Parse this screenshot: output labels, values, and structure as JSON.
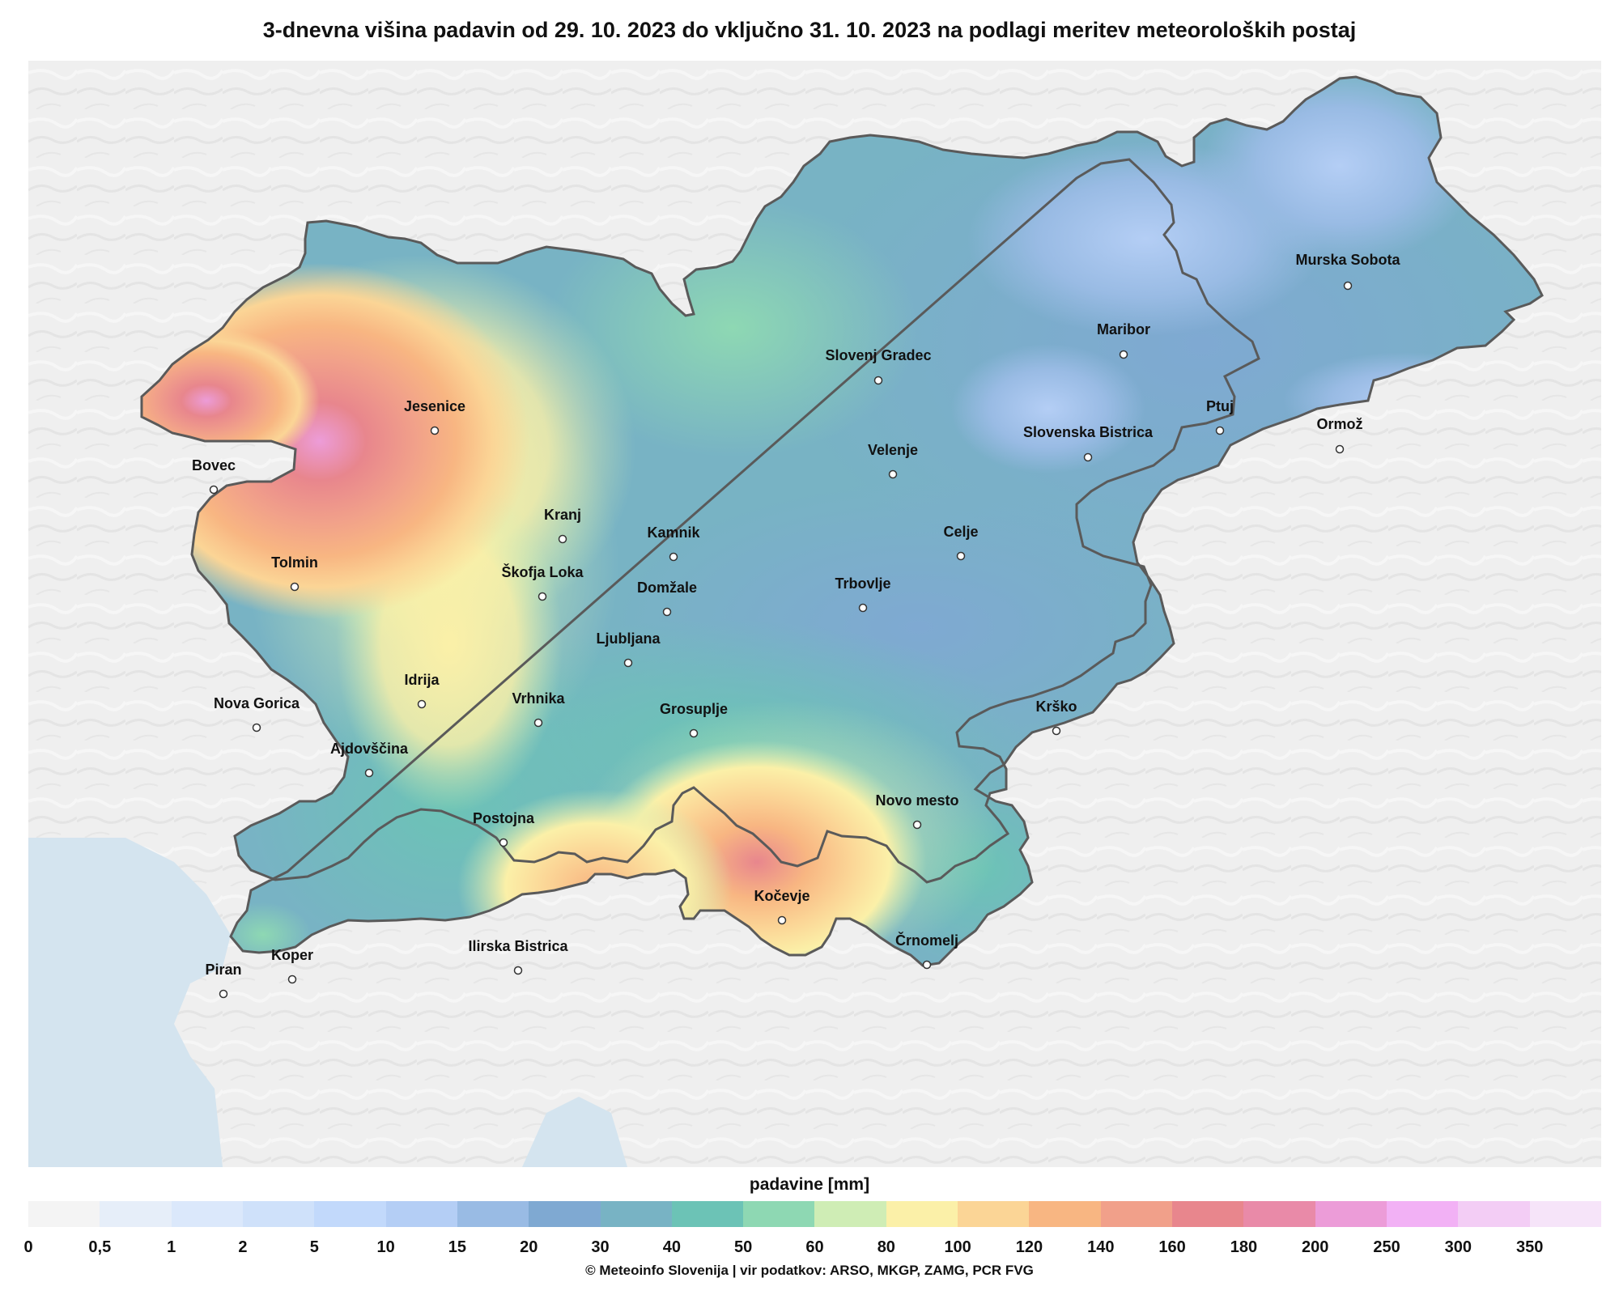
{
  "title": "3-dnevna višina padavin od 29. 10. 2023 do vključno 31. 10. 2023 na podlagi meritev meteoroloških postaj",
  "legend": {
    "title": "padavine [mm]",
    "ticks": [
      "0",
      "0,5",
      "1",
      "2",
      "5",
      "10",
      "15",
      "20",
      "30",
      "40",
      "50",
      "60",
      "80",
      "100",
      "120",
      "140",
      "160",
      "180",
      "200",
      "250",
      "300",
      "350"
    ],
    "colors": [
      "#f4f4f4",
      "#e6eef9",
      "#dbe8fb",
      "#cfe1fa",
      "#c2d9fb",
      "#b4cef5",
      "#99bbe4",
      "#7fa9d2",
      "#78b3c4",
      "#6cc3b6",
      "#8ed8b3",
      "#cfedb5",
      "#fbf0a8",
      "#fbd596",
      "#f8b682",
      "#f1a08a",
      "#e8868d",
      "#e98aa8",
      "#ec9cd8",
      "#f2b1f5",
      "#f3cdf5",
      "#f6e4f9"
    ]
  },
  "credit": "© Meteoinfo Slovenija  |  vir podatkov: ARSO, MKGP, ZAMG, PCR FVG",
  "cities": [
    {
      "name": "Murska Sobota"
    },
    {
      "name": "Maribor"
    },
    {
      "name": "Slovenj Gradec"
    },
    {
      "name": "Ptuj"
    },
    {
      "name": "Ormož"
    },
    {
      "name": "Slovenska Bistrica"
    },
    {
      "name": "Velenje"
    },
    {
      "name": "Jesenice"
    },
    {
      "name": "Bovec"
    },
    {
      "name": "Kranj"
    },
    {
      "name": "Kamnik"
    },
    {
      "name": "Celje"
    },
    {
      "name": "Tolmin"
    },
    {
      "name": "Škofja Loka"
    },
    {
      "name": "Domžale"
    },
    {
      "name": "Trbovlje"
    },
    {
      "name": "Ljubljana"
    },
    {
      "name": "Idrija"
    },
    {
      "name": "Nova Gorica"
    },
    {
      "name": "Vrhnika"
    },
    {
      "name": "Grosuplje"
    },
    {
      "name": "Krško"
    },
    {
      "name": "Ajdovščina"
    },
    {
      "name": "Novo mesto"
    },
    {
      "name": "Postojna"
    },
    {
      "name": "Kočevje"
    },
    {
      "name": "Ilirska Bistrica"
    },
    {
      "name": "Črnomelj"
    },
    {
      "name": "Koper"
    },
    {
      "name": "Piran"
    }
  ]
}
